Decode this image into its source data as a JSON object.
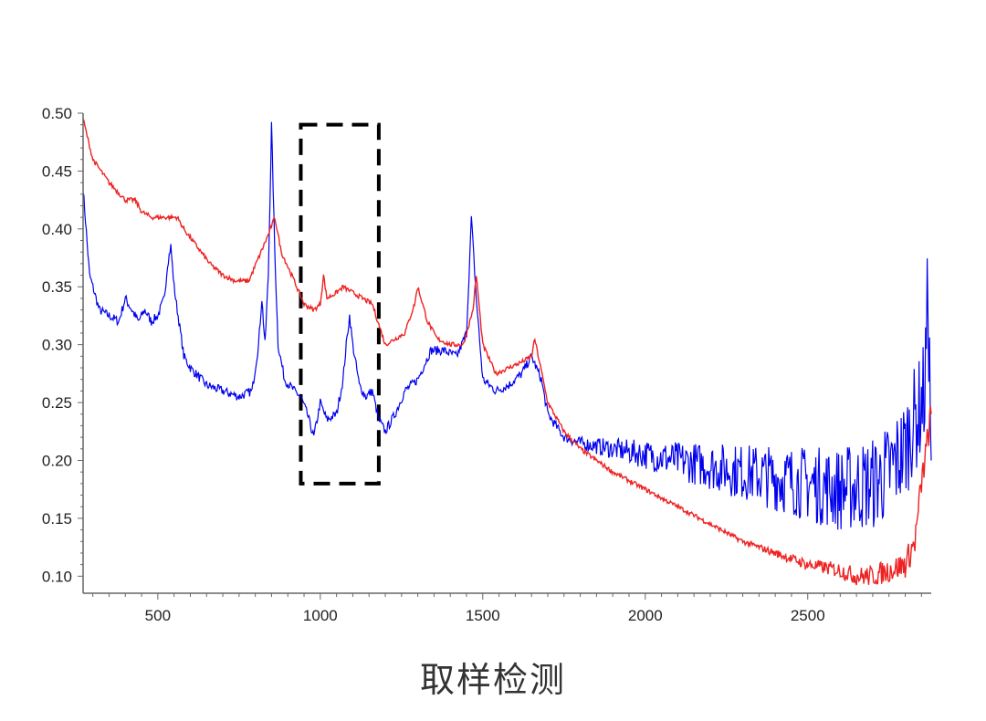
{
  "caption": "取样检测",
  "chart_data": {
    "type": "line",
    "title": "",
    "xlabel": "",
    "ylabel": "",
    "xlim": [
      270,
      2880
    ],
    "ylim": [
      0.09,
      0.5
    ],
    "x_ticks": [
      500,
      1000,
      1500,
      2000,
      2500
    ],
    "x_tick_labels": [
      "500",
      "1000",
      "1500",
      "2000",
      "2500"
    ],
    "y_ticks": [
      0.1,
      0.15,
      0.2,
      0.25,
      0.3,
      0.35,
      0.4,
      0.45,
      0.5
    ],
    "y_tick_labels": [
      "0.10",
      "0.15",
      "0.20",
      "0.25",
      "0.30",
      "0.35",
      "0.40",
      "0.45",
      "0.50"
    ],
    "grid": false,
    "highlight_box": {
      "x_range": [
        940,
        1180
      ],
      "y_range": [
        0.18,
        0.49
      ],
      "style": "dashed"
    },
    "series": [
      {
        "color": "#0000ee",
        "noise_above_x": 1750,
        "x": [
          270,
          290,
          320,
          350,
          380,
          400,
          420,
          440,
          460,
          480,
          500,
          520,
          530,
          540,
          550,
          580,
          600,
          650,
          700,
          750,
          790,
          810,
          820,
          830,
          840,
          850,
          860,
          870,
          890,
          920,
          940,
          960,
          980,
          1000,
          1020,
          1050,
          1070,
          1080,
          1090,
          1100,
          1120,
          1140,
          1160,
          1180,
          1200,
          1230,
          1260,
          1300,
          1340,
          1380,
          1420,
          1450,
          1465,
          1480,
          1500,
          1540,
          1580,
          1620,
          1650,
          1680,
          1700,
          1750,
          1800,
          1900,
          2000,
          2100,
          2200,
          2300,
          2400,
          2500,
          2600,
          2700,
          2750,
          2800,
          2820,
          2840,
          2860,
          2870,
          2880
        ],
        "y": [
          0.435,
          0.36,
          0.33,
          0.325,
          0.32,
          0.34,
          0.33,
          0.32,
          0.33,
          0.32,
          0.325,
          0.34,
          0.37,
          0.385,
          0.35,
          0.29,
          0.28,
          0.265,
          0.26,
          0.255,
          0.26,
          0.3,
          0.34,
          0.3,
          0.36,
          0.49,
          0.38,
          0.3,
          0.27,
          0.26,
          0.255,
          0.24,
          0.22,
          0.25,
          0.235,
          0.24,
          0.27,
          0.3,
          0.325,
          0.3,
          0.265,
          0.255,
          0.26,
          0.235,
          0.225,
          0.24,
          0.26,
          0.27,
          0.295,
          0.295,
          0.29,
          0.31,
          0.41,
          0.34,
          0.27,
          0.26,
          0.265,
          0.275,
          0.29,
          0.27,
          0.24,
          0.22,
          0.215,
          0.21,
          0.205,
          0.2,
          0.195,
          0.19,
          0.185,
          0.18,
          0.175,
          0.18,
          0.19,
          0.21,
          0.23,
          0.24,
          0.26,
          0.35,
          0.2
        ]
      },
      {
        "color": "#ee2222",
        "noise_above_x": 2250,
        "x": [
          270,
          300,
          350,
          400,
          430,
          450,
          480,
          520,
          560,
          580,
          620,
          660,
          700,
          740,
          780,
          810,
          840,
          860,
          880,
          920,
          950,
          980,
          1000,
          1010,
          1020,
          1050,
          1070,
          1100,
          1130,
          1160,
          1200,
          1230,
          1260,
          1290,
          1300,
          1330,
          1360,
          1400,
          1440,
          1470,
          1480,
          1500,
          1540,
          1580,
          1620,
          1650,
          1660,
          1700,
          1750,
          1800,
          1900,
          2000,
          2100,
          2200,
          2300,
          2400,
          2500,
          2600,
          2650,
          2700,
          2750,
          2800,
          2830,
          2850,
          2870,
          2880
        ],
        "y": [
          0.495,
          0.46,
          0.44,
          0.425,
          0.425,
          0.415,
          0.41,
          0.41,
          0.41,
          0.4,
          0.385,
          0.37,
          0.36,
          0.355,
          0.355,
          0.375,
          0.395,
          0.41,
          0.38,
          0.355,
          0.335,
          0.33,
          0.335,
          0.36,
          0.34,
          0.345,
          0.35,
          0.345,
          0.34,
          0.335,
          0.3,
          0.305,
          0.31,
          0.335,
          0.35,
          0.32,
          0.305,
          0.3,
          0.3,
          0.33,
          0.36,
          0.3,
          0.275,
          0.28,
          0.285,
          0.29,
          0.305,
          0.25,
          0.225,
          0.21,
          0.19,
          0.175,
          0.16,
          0.145,
          0.13,
          0.12,
          0.11,
          0.105,
          0.1,
          0.1,
          0.105,
          0.11,
          0.13,
          0.18,
          0.22,
          0.24
        ]
      }
    ]
  }
}
